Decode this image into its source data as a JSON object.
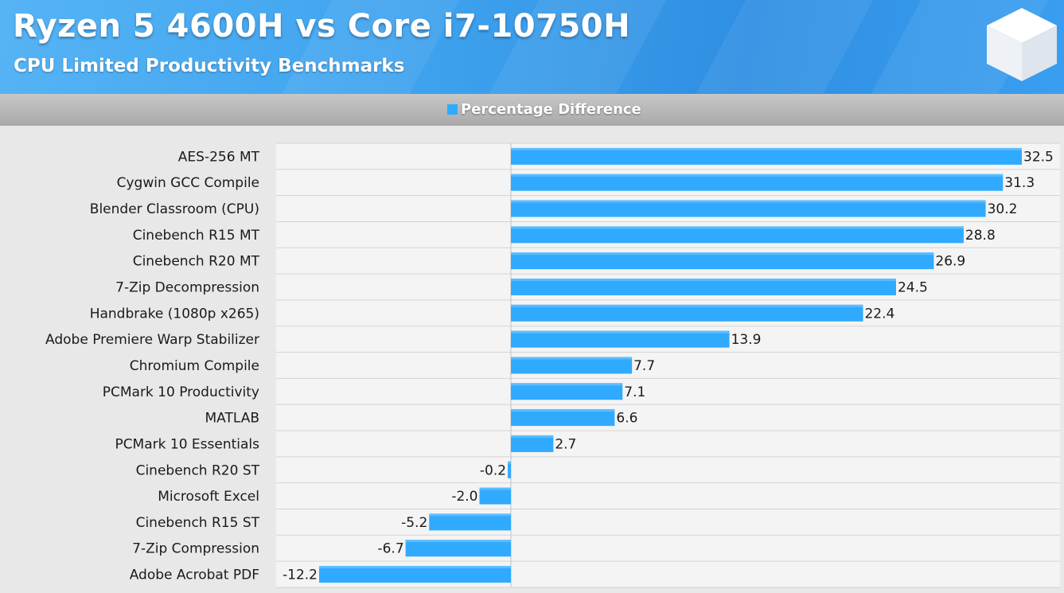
{
  "header": {
    "title": "Ryzen 5 4600H vs Core i7-10750H",
    "subtitle": "CPU Limited Productivity Benchmarks"
  },
  "logo": {
    "icon": "cube-icon",
    "color": "#ffffff"
  },
  "legend": {
    "label": "Percentage Difference",
    "color": "#30aaff"
  },
  "chart_data": {
    "type": "bar",
    "orientation": "horizontal",
    "title": "Ryzen 5 4600H vs Core i7-10750H",
    "subtitle": "CPU Limited Productivity Benchmarks",
    "categories": [
      "AES-256 MT",
      "Cygwin GCC Compile",
      "Blender Classroom (CPU)",
      "Cinebench R15 MT",
      "Cinebench R20 MT",
      "7-Zip Decompression",
      "Handbrake (1080p x265)",
      "Adobe Premiere Warp Stabilizer",
      "Chromium Compile",
      "PCMark 10 Productivity",
      "MATLAB",
      "PCMark 10 Essentials",
      "Cinebench R20 ST",
      "Microsoft Excel",
      "Cinebench R15 ST",
      "7-Zip Compression",
      "Adobe Acrobat PDF"
    ],
    "series": [
      {
        "name": "Percentage Difference",
        "color": "#30aaff",
        "values": [
          32.5,
          31.3,
          30.2,
          28.8,
          26.9,
          24.5,
          22.4,
          13.9,
          7.7,
          7.1,
          6.6,
          2.7,
          -0.2,
          -2.0,
          -5.2,
          -6.7,
          -12.2
        ],
        "labels": [
          "32.5",
          "31.3",
          "30.2",
          "28.8",
          "26.9",
          "24.5",
          "22.4",
          "13.9",
          "7.7",
          "7.1",
          "6.6",
          "2.7",
          "-0.2",
          "-2.0",
          "-5.2",
          "-6.7",
          "-12.2"
        ]
      }
    ],
    "xlim": [
      -15,
      35
    ],
    "grid": true,
    "legend_position": "top-center"
  }
}
